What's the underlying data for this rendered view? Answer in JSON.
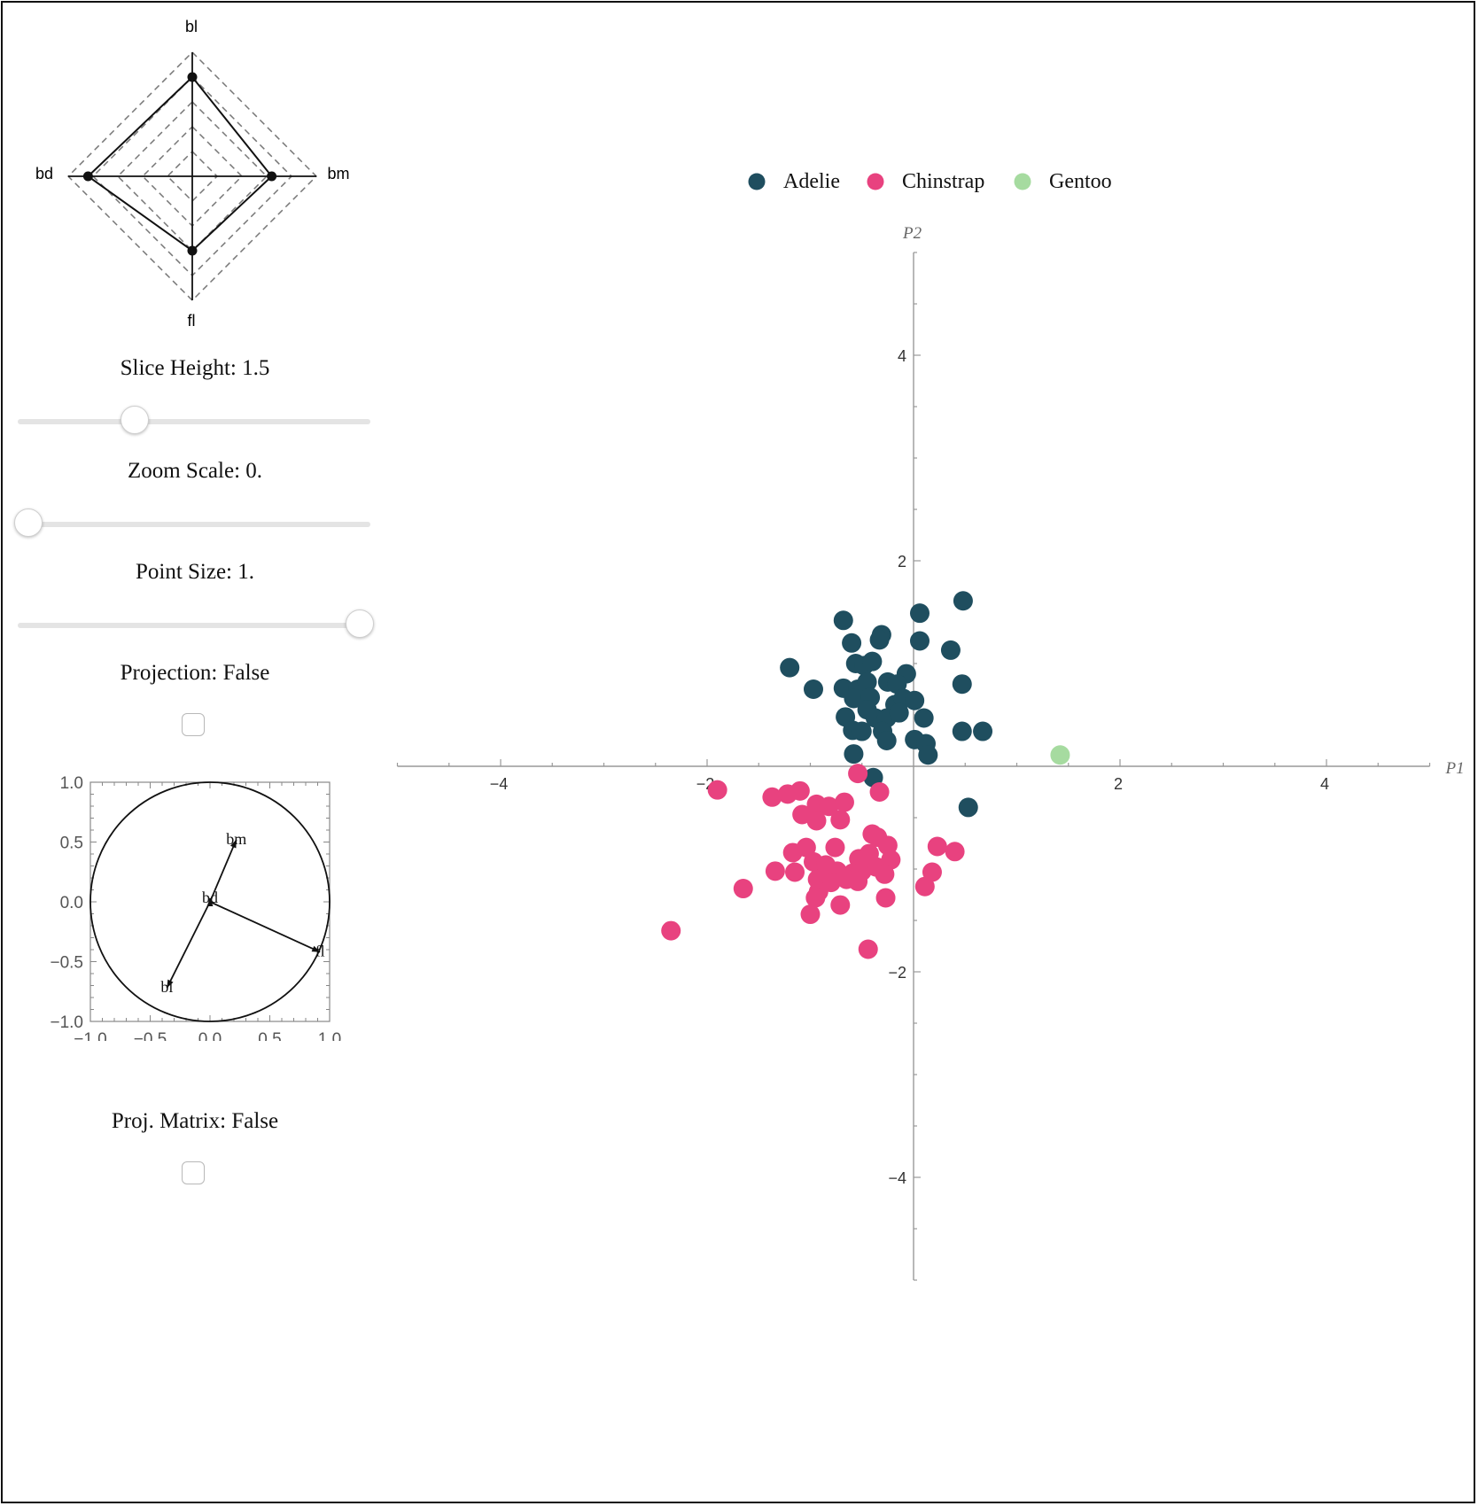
{
  "controls": {
    "slice_height": {
      "label": "Slice Height: 1.5",
      "value": 1.5,
      "fraction": 0.32
    },
    "zoom_scale": {
      "label": "Zoom Scale: 0.",
      "value": 0,
      "fraction": 0.0
    },
    "point_size": {
      "label": "Point Size: 1.",
      "value": 1,
      "fraction": 1.0
    },
    "projection": {
      "label": "Projection: False",
      "checked": false
    },
    "proj_matrix": {
      "label": "Proj. Matrix: False",
      "checked": false
    }
  },
  "radar": {
    "axes": [
      "bl",
      "bm",
      "fl",
      "bd"
    ],
    "values": [
      0.8,
      0.64,
      0.6,
      0.84
    ]
  },
  "circle_plot": {
    "xlim": [
      -1,
      1
    ],
    "ylim": [
      -1,
      1
    ],
    "xticks": [
      "−1.0",
      "−0.5",
      "0.0",
      "0.5",
      "1.0"
    ],
    "yticks": [
      "1.0",
      "0.5",
      "0.0",
      "−0.5",
      "−1.0"
    ],
    "vectors": [
      {
        "name": "bm",
        "x": 0.22,
        "y": 0.52
      },
      {
        "name": "bd",
        "x": 0.0,
        "y": 0.03
      },
      {
        "name": "fl",
        "x": 0.92,
        "y": -0.42
      },
      {
        "name": "bl",
        "x": -0.36,
        "y": -0.72
      }
    ]
  },
  "chart_data": {
    "type": "scatter",
    "title": "",
    "xlabel": "P1",
    "ylabel": "P2",
    "xlim": [
      -5,
      5
    ],
    "ylim": [
      -5,
      5
    ],
    "xticks": [
      "−4",
      "−2",
      "2",
      "4"
    ],
    "yticks": [
      "4",
      "2",
      "−2",
      "−4"
    ],
    "legend_position": "top-center",
    "series": [
      {
        "name": "Adelie",
        "color": "#1f4e5f",
        "points": [
          [
            0.48,
            1.61
          ],
          [
            0.06,
            1.49
          ],
          [
            -0.68,
            1.42
          ],
          [
            -0.31,
            1.28
          ],
          [
            -0.33,
            1.23
          ],
          [
            0.06,
            1.22
          ],
          [
            -0.6,
            1.2
          ],
          [
            0.36,
            1.13
          ],
          [
            -1.2,
            0.96
          ],
          [
            -0.56,
            1.0
          ],
          [
            -0.48,
            0.98
          ],
          [
            -0.4,
            1.02
          ],
          [
            -0.07,
            0.9
          ],
          [
            -0.25,
            0.82
          ],
          [
            -0.16,
            0.8
          ],
          [
            0.47,
            0.8
          ],
          [
            -0.97,
            0.75
          ],
          [
            -0.68,
            0.76
          ],
          [
            -0.54,
            0.75
          ],
          [
            -0.45,
            0.82
          ],
          [
            -0.58,
            0.66
          ],
          [
            -0.42,
            0.67
          ],
          [
            -0.18,
            0.6
          ],
          [
            -0.1,
            0.66
          ],
          [
            0.01,
            0.64
          ],
          [
            -0.66,
            0.48
          ],
          [
            -0.45,
            0.55
          ],
          [
            -0.37,
            0.47
          ],
          [
            -0.26,
            0.47
          ],
          [
            -0.14,
            0.52
          ],
          [
            0.1,
            0.47
          ],
          [
            -0.59,
            0.35
          ],
          [
            -0.5,
            0.34
          ],
          [
            -0.3,
            0.34
          ],
          [
            -0.26,
            0.25
          ],
          [
            0.01,
            0.26
          ],
          [
            0.12,
            0.22
          ],
          [
            0.47,
            0.34
          ],
          [
            0.67,
            0.34
          ],
          [
            -0.58,
            0.12
          ],
          [
            0.14,
            0.11
          ],
          [
            -0.39,
            -0.11
          ],
          [
            0.53,
            -0.4
          ]
        ]
      },
      {
        "name": "Chinstrap",
        "color": "#e8427f",
        "points": [
          [
            -1.9,
            -0.23
          ],
          [
            -0.54,
            -0.07
          ],
          [
            -0.33,
            -0.25
          ],
          [
            -1.37,
            -0.3
          ],
          [
            -1.22,
            -0.27
          ],
          [
            -1.1,
            -0.24
          ],
          [
            -0.94,
            -0.37
          ],
          [
            -0.82,
            -0.39
          ],
          [
            -0.67,
            -0.35
          ],
          [
            -1.08,
            -0.47
          ],
          [
            -0.94,
            -0.53
          ],
          [
            -0.71,
            -0.52
          ],
          [
            -0.4,
            -0.66
          ],
          [
            -0.35,
            -0.69
          ],
          [
            -0.25,
            -0.77
          ],
          [
            0.23,
            -0.78
          ],
          [
            0.4,
            -0.83
          ],
          [
            -1.17,
            -0.84
          ],
          [
            -1.04,
            -0.79
          ],
          [
            -0.76,
            -0.79
          ],
          [
            -0.53,
            -0.9
          ],
          [
            -0.43,
            -0.85
          ],
          [
            -0.22,
            -0.91
          ],
          [
            -1.34,
            -1.02
          ],
          [
            -1.15,
            -1.03
          ],
          [
            -0.97,
            -0.93
          ],
          [
            -0.85,
            -0.96
          ],
          [
            -0.74,
            -1.02
          ],
          [
            -0.59,
            -1.04
          ],
          [
            -0.5,
            -1.02
          ],
          [
            -0.36,
            -0.98
          ],
          [
            -0.28,
            -1.05
          ],
          [
            -0.93,
            -1.1
          ],
          [
            -0.8,
            -1.13
          ],
          [
            -0.65,
            -1.1
          ],
          [
            -0.54,
            -1.12
          ],
          [
            0.18,
            -1.03
          ],
          [
            -0.92,
            -1.22
          ],
          [
            -1.65,
            -1.19
          ],
          [
            -0.27,
            -1.28
          ],
          [
            0.11,
            -1.17
          ],
          [
            -0.95,
            -1.28
          ],
          [
            -0.71,
            -1.35
          ],
          [
            -1.0,
            -1.44
          ],
          [
            -2.35,
            -1.6
          ],
          [
            -0.44,
            -1.78
          ]
        ]
      },
      {
        "name": "Gentoo",
        "color": "#a6dba0",
        "points": [
          [
            1.42,
            0.11
          ]
        ]
      }
    ]
  }
}
